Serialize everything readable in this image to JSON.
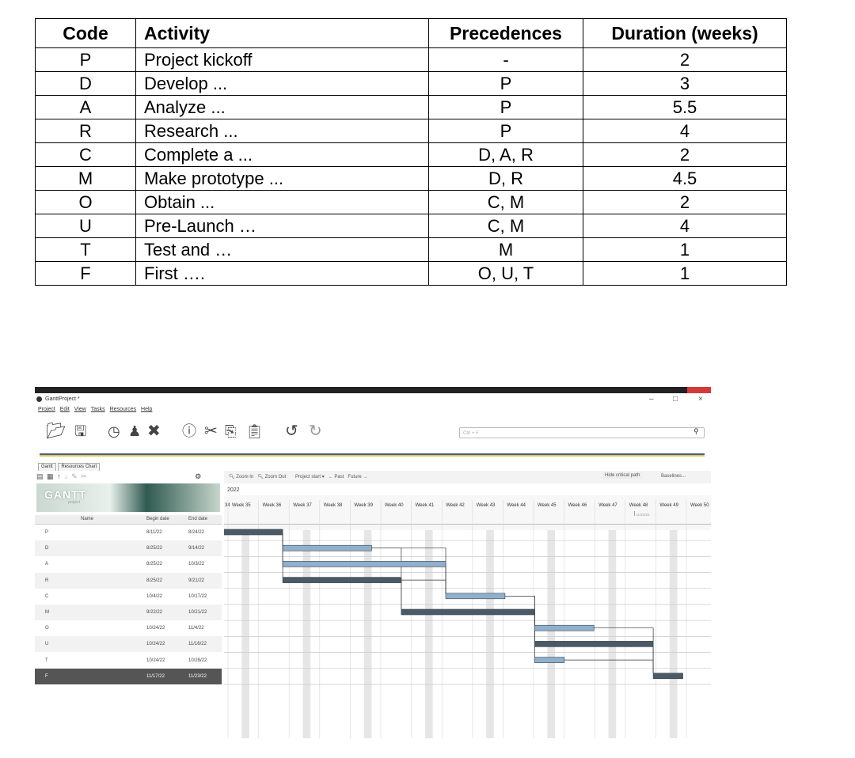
{
  "table": {
    "headers": {
      "code": "Code",
      "activity": "Activity",
      "precedences": "Precedences",
      "duration": "Duration (weeks)"
    },
    "rows": [
      {
        "code": "P",
        "activity": "Project kickoff",
        "precedences": "-",
        "duration": "2"
      },
      {
        "code": "D",
        "activity": "Develop ...",
        "precedences": "P",
        "duration": "3"
      },
      {
        "code": "A",
        "activity": "Analyze ...",
        "precedences": "P",
        "duration": "5.5"
      },
      {
        "code": "R",
        "activity": "Research ...",
        "precedences": "P",
        "duration": "4"
      },
      {
        "code": "C",
        "activity": "Complete a ...",
        "precedences": "D, A, R",
        "duration": "2"
      },
      {
        "code": "M",
        "activity": "Make prototype ...",
        "precedences": "D, R",
        "duration": "4.5"
      },
      {
        "code": "O",
        "activity": "Obtain ...",
        "precedences": "C, M",
        "duration": "2"
      },
      {
        "code": "U",
        "activity": "Pre-Launch …",
        "precedences": "C, M",
        "duration": "4"
      },
      {
        "code": "T",
        "activity": "Test and …",
        "precedences": "M",
        "duration": "1"
      },
      {
        "code": "F",
        "activity": "First ….",
        "precedences": "O, U, T",
        "duration": "1"
      }
    ]
  },
  "gantt": {
    "window_title": "GanttProject *",
    "window_controls": {
      "minimize": "–",
      "maximize": "□",
      "close": "×"
    },
    "menu": [
      "Project",
      "Edit",
      "View",
      "Tasks",
      "Resources",
      "Help"
    ],
    "search_placeholder": "Ctrl + F",
    "tabs": [
      "Gantt",
      "Resources Chart"
    ],
    "logo_text": "GANTT",
    "logo_sub": "project",
    "columns": {
      "name": "Name",
      "begin": "Begin date",
      "end": "End date"
    },
    "toolbar": {
      "zoom_in": "Zoom In",
      "zoom_out": "Zoom Out",
      "project_start": "Project start",
      "past": "← Past",
      "future": "Future →",
      "hide_critical": "Hide critical path",
      "baselines": "Baselines..."
    },
    "year": "2022",
    "week_first_label": "34",
    "weeks": [
      "Week 35",
      "Week 36",
      "Week 37",
      "Week 38",
      "Week 39",
      "Week 40",
      "Week 41",
      "Week 42",
      "Week 43",
      "Week 44",
      "Week 45",
      "Week 46",
      "Week 47",
      "Week 48",
      "Week 49",
      "Week 50"
    ],
    "today_marker": "11/24/22",
    "tasks": [
      {
        "name": "P",
        "begin": "8/11/22",
        "end": "8/24/22",
        "start_week": 0,
        "duration": 2,
        "critical": true
      },
      {
        "name": "D",
        "begin": "8/25/22",
        "end": "9/14/22",
        "start_week": 2,
        "duration": 3,
        "critical": false
      },
      {
        "name": "A",
        "begin": "8/25/22",
        "end": "10/3/22",
        "start_week": 2,
        "duration": 5.5,
        "critical": false
      },
      {
        "name": "R",
        "begin": "8/25/22",
        "end": "9/21/22",
        "start_week": 2,
        "duration": 4,
        "critical": true
      },
      {
        "name": "C",
        "begin": "10/4/22",
        "end": "10/17/22",
        "start_week": 7.5,
        "duration": 2,
        "critical": false
      },
      {
        "name": "M",
        "begin": "9/22/22",
        "end": "10/21/22",
        "start_week": 6,
        "duration": 4.5,
        "critical": true
      },
      {
        "name": "O",
        "begin": "10/24/22",
        "end": "11/4/22",
        "start_week": 10.5,
        "duration": 2,
        "critical": false
      },
      {
        "name": "U",
        "begin": "10/24/22",
        "end": "11/16/22",
        "start_week": 10.5,
        "duration": 4,
        "critical": true
      },
      {
        "name": "T",
        "begin": "10/24/22",
        "end": "10/28/22",
        "start_week": 10.5,
        "duration": 1,
        "critical": false
      },
      {
        "name": "F",
        "begin": "11/17/22",
        "end": "11/23/22",
        "start_week": 14.5,
        "duration": 1,
        "critical": true
      }
    ],
    "colors": {
      "critical": "#4b5a66",
      "normal": "#8fb0cc",
      "alt_row": "#f2f2f2",
      "week_shade": "#e6e6e6"
    }
  }
}
